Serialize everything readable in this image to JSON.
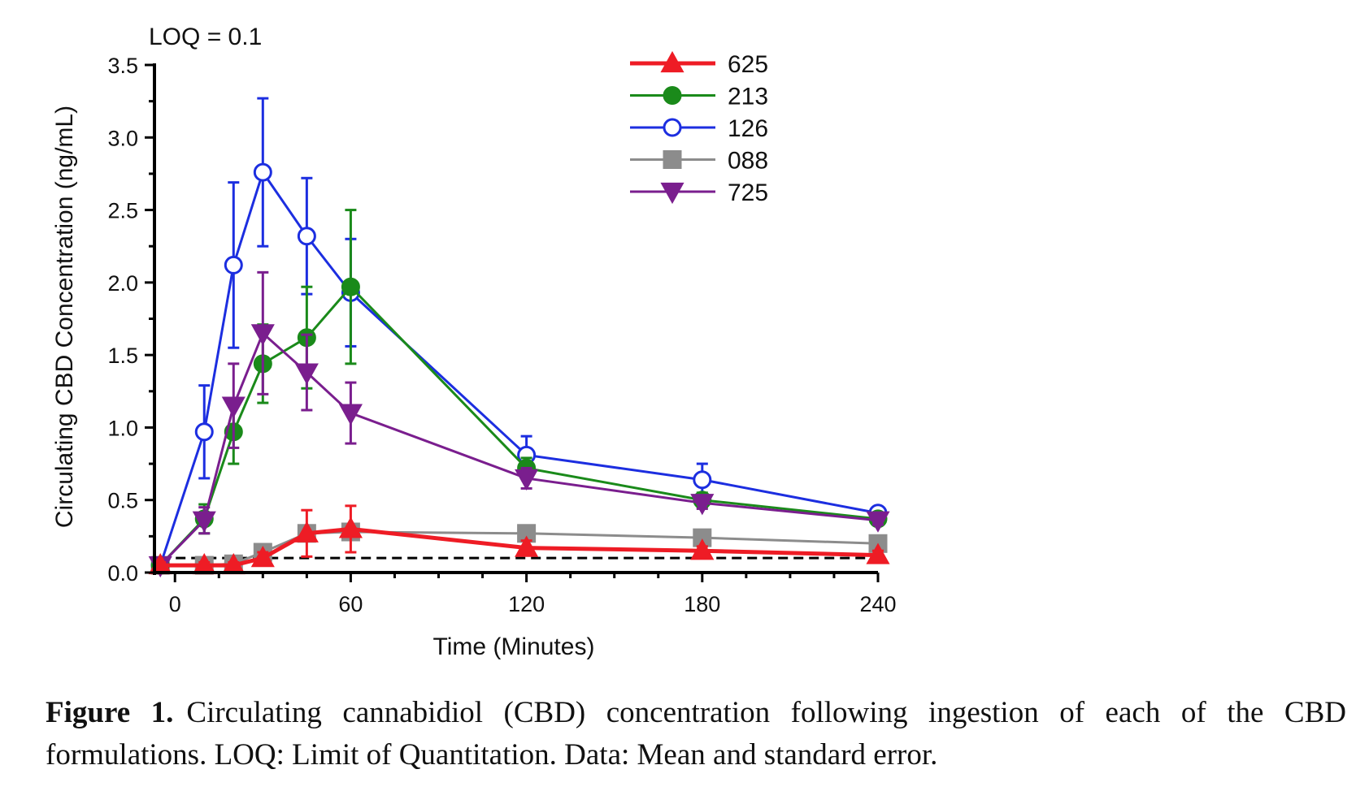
{
  "annotation": "LOQ = 0.1",
  "caption": {
    "label": "Figure 1.",
    "text": "Circulating cannabidiol (CBD) concentration following ingestion of each of the CBD formulations. LOQ: Limit of Quantitation. Data: Mean and standard error."
  },
  "chart_data": {
    "type": "line",
    "title": "",
    "xlabel": "Time (Minutes)",
    "ylabel": "Circulating CBD Concentration (ng/mL)",
    "xlim": [
      -7,
      240
    ],
    "ylim": [
      0,
      3.5
    ],
    "xticks": [
      0,
      60,
      120,
      180,
      240
    ],
    "yticks": [
      0.0,
      0.5,
      1.0,
      1.5,
      2.0,
      2.5,
      3.0,
      3.5
    ],
    "ytick_labels": [
      "0.0",
      "0.5",
      "1.0",
      "1.5",
      "2.0",
      "2.5",
      "3.0",
      "3.5"
    ],
    "grid": false,
    "legend": "top-right",
    "loq": 0.1,
    "x": [
      -5,
      10,
      20,
      30,
      45,
      60,
      120,
      180,
      240
    ],
    "series": [
      {
        "name": "625",
        "color": "#ee1c25",
        "marker": "triangle-up",
        "filled": true,
        "values": [
          0.05,
          0.05,
          0.05,
          0.1,
          0.27,
          0.3,
          0.17,
          0.15,
          0.12
        ],
        "errors": [
          0.02,
          0.02,
          0.02,
          0.04,
          0.16,
          0.16,
          0.05,
          0.03,
          0.03
        ]
      },
      {
        "name": "213",
        "color": "#1a8a1a",
        "marker": "circle",
        "filled": true,
        "values": [
          0.05,
          0.37,
          0.97,
          1.44,
          1.62,
          1.97,
          0.72,
          0.5,
          0.37
        ],
        "errors": [
          0.02,
          0.1,
          0.22,
          0.27,
          0.35,
          0.53,
          0.07,
          0.05,
          0.03
        ]
      },
      {
        "name": "126",
        "color": "#1c2ee0",
        "marker": "circle",
        "filled": false,
        "values": [
          0.05,
          0.97,
          2.12,
          2.76,
          2.32,
          1.93,
          0.81,
          0.64,
          0.41
        ],
        "errors": [
          0.02,
          0.32,
          0.57,
          0.51,
          0.4,
          0.37,
          0.13,
          0.11,
          0.03
        ]
      },
      {
        "name": "088",
        "color": "#8c8c8c",
        "marker": "square",
        "filled": true,
        "values": [
          0.05,
          0.05,
          0.06,
          0.14,
          0.27,
          0.28,
          0.27,
          0.24,
          0.2
        ],
        "errors": [
          0.02,
          0.02,
          0.02,
          0.03,
          0.05,
          0.05,
          0.03,
          0.03,
          0.02
        ]
      },
      {
        "name": "725",
        "color": "#7a1e8e",
        "marker": "triangle-down",
        "filled": true,
        "values": [
          0.05,
          0.36,
          1.15,
          1.65,
          1.38,
          1.1,
          0.65,
          0.48,
          0.36
        ],
        "errors": [
          0.02,
          0.09,
          0.29,
          0.42,
          0.26,
          0.21,
          0.07,
          0.04,
          0.03
        ]
      }
    ]
  }
}
